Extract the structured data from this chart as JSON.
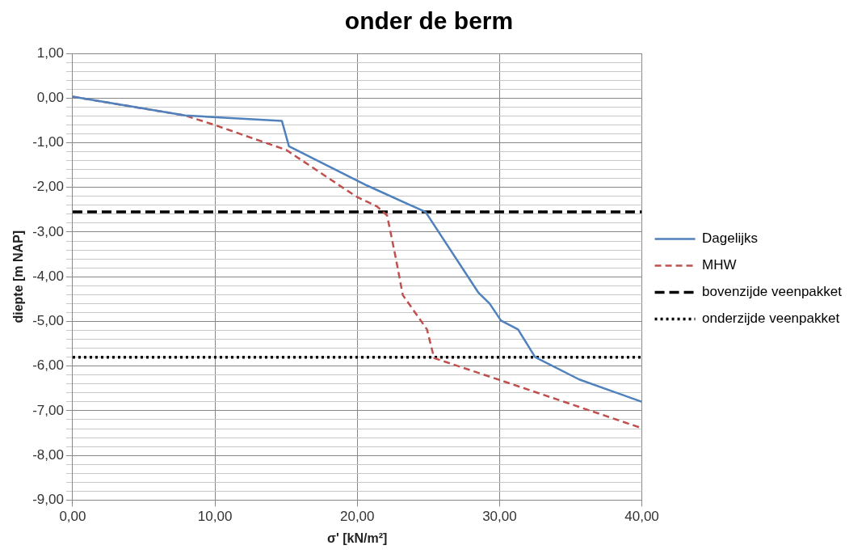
{
  "chart_data": {
    "type": "line",
    "title": "onder de berm",
    "xlabel": "σ' [kN/m²]",
    "ylabel": "diepte [m NAP]",
    "xlim": [
      0,
      40
    ],
    "ylim": [
      -9,
      1
    ],
    "xticks": [
      {
        "value": 0,
        "label": "0,00"
      },
      {
        "value": 10,
        "label": "10,00"
      },
      {
        "value": 20,
        "label": "20,00"
      },
      {
        "value": 30,
        "label": "30,00"
      },
      {
        "value": 40,
        "label": "40,00"
      }
    ],
    "yticks": [
      {
        "value": -9,
        "label": "-9,00"
      },
      {
        "value": -8.8,
        "label": null
      },
      {
        "value": -8.6,
        "label": null
      },
      {
        "value": -8.4,
        "label": null
      },
      {
        "value": -8.2,
        "label": null
      },
      {
        "value": -8,
        "label": "-8,00"
      },
      {
        "value": -7.8,
        "label": null
      },
      {
        "value": -7.6,
        "label": null
      },
      {
        "value": -7.4,
        "label": null
      },
      {
        "value": -7.2,
        "label": null
      },
      {
        "value": -7,
        "label": "-7,00"
      },
      {
        "value": -6.8,
        "label": null
      },
      {
        "value": -6.6,
        "label": null
      },
      {
        "value": -6.4,
        "label": null
      },
      {
        "value": -6.2,
        "label": null
      },
      {
        "value": -6,
        "label": "-6,00"
      },
      {
        "value": -5.8,
        "label": null
      },
      {
        "value": -5.6,
        "label": null
      },
      {
        "value": -5.4,
        "label": null
      },
      {
        "value": -5.2,
        "label": null
      },
      {
        "value": -5,
        "label": "-5,00"
      },
      {
        "value": -4.8,
        "label": null
      },
      {
        "value": -4.6,
        "label": null
      },
      {
        "value": -4.4,
        "label": null
      },
      {
        "value": -4.2,
        "label": null
      },
      {
        "value": -4,
        "label": "-4,00"
      },
      {
        "value": -3.8,
        "label": null
      },
      {
        "value": -3.6,
        "label": null
      },
      {
        "value": -3.4,
        "label": null
      },
      {
        "value": -3.2,
        "label": null
      },
      {
        "value": -3,
        "label": "-3,00"
      },
      {
        "value": -2.8,
        "label": null
      },
      {
        "value": -2.6,
        "label": null
      },
      {
        "value": -2.4,
        "label": null
      },
      {
        "value": -2.2,
        "label": null
      },
      {
        "value": -2,
        "label": "-2,00"
      },
      {
        "value": -1.8,
        "label": null
      },
      {
        "value": -1.6,
        "label": null
      },
      {
        "value": -1.4,
        "label": null
      },
      {
        "value": -1.2,
        "label": null
      },
      {
        "value": -1,
        "label": "-1,00"
      },
      {
        "value": -0.8,
        "label": null
      },
      {
        "value": -0.6,
        "label": null
      },
      {
        "value": -0.4,
        "label": null
      },
      {
        "value": -0.2,
        "label": null
      },
      {
        "value": 0,
        "label": "0,00"
      },
      {
        "value": 0.2,
        "label": null
      },
      {
        "value": 0.4,
        "label": null
      },
      {
        "value": 0.6,
        "label": null
      },
      {
        "value": 0.8,
        "label": null
      },
      {
        "value": 1,
        "label": "1,00"
      }
    ],
    "grid": true,
    "legend": "right",
    "marker": "none",
    "series": [
      {
        "name": "Dagelijks",
        "color": "#4f81bd",
        "line_style": "solid",
        "x": [
          0,
          7.9,
          14.7,
          15.2,
          20.7,
          24.8,
          28.5,
          29.3,
          30.1,
          31.3,
          32.5,
          35.6,
          40
        ],
        "values": [
          0.03,
          -0.39,
          -0.51,
          -1.08,
          -1.96,
          -2.55,
          -4.35,
          -4.6,
          -4.98,
          -5.18,
          -5.8,
          -6.3,
          -6.8
        ]
      },
      {
        "name": "MHW",
        "color": "#c0504d",
        "line_style": "dashed",
        "x": [
          0,
          7.9,
          9.85,
          15,
          19.9,
          21.4,
          22.1,
          22.7,
          23.2,
          24.9,
          25.4,
          30,
          40
        ],
        "values": [
          0.03,
          -0.39,
          -0.59,
          -1.16,
          -2.2,
          -2.43,
          -2.63,
          -3.57,
          -4.41,
          -5.18,
          -5.82,
          -6.31,
          -7.39
        ]
      }
    ],
    "ref_lines": [
      {
        "axis": "y",
        "value": -2.55,
        "label": "bovenzijde veenpakket",
        "color": "#000000",
        "line_style": "dashed"
      },
      {
        "axis": "y",
        "value": -5.8,
        "label": "onderzijde veenpakket",
        "color": "#000000",
        "line_style": "dotted"
      }
    ]
  }
}
